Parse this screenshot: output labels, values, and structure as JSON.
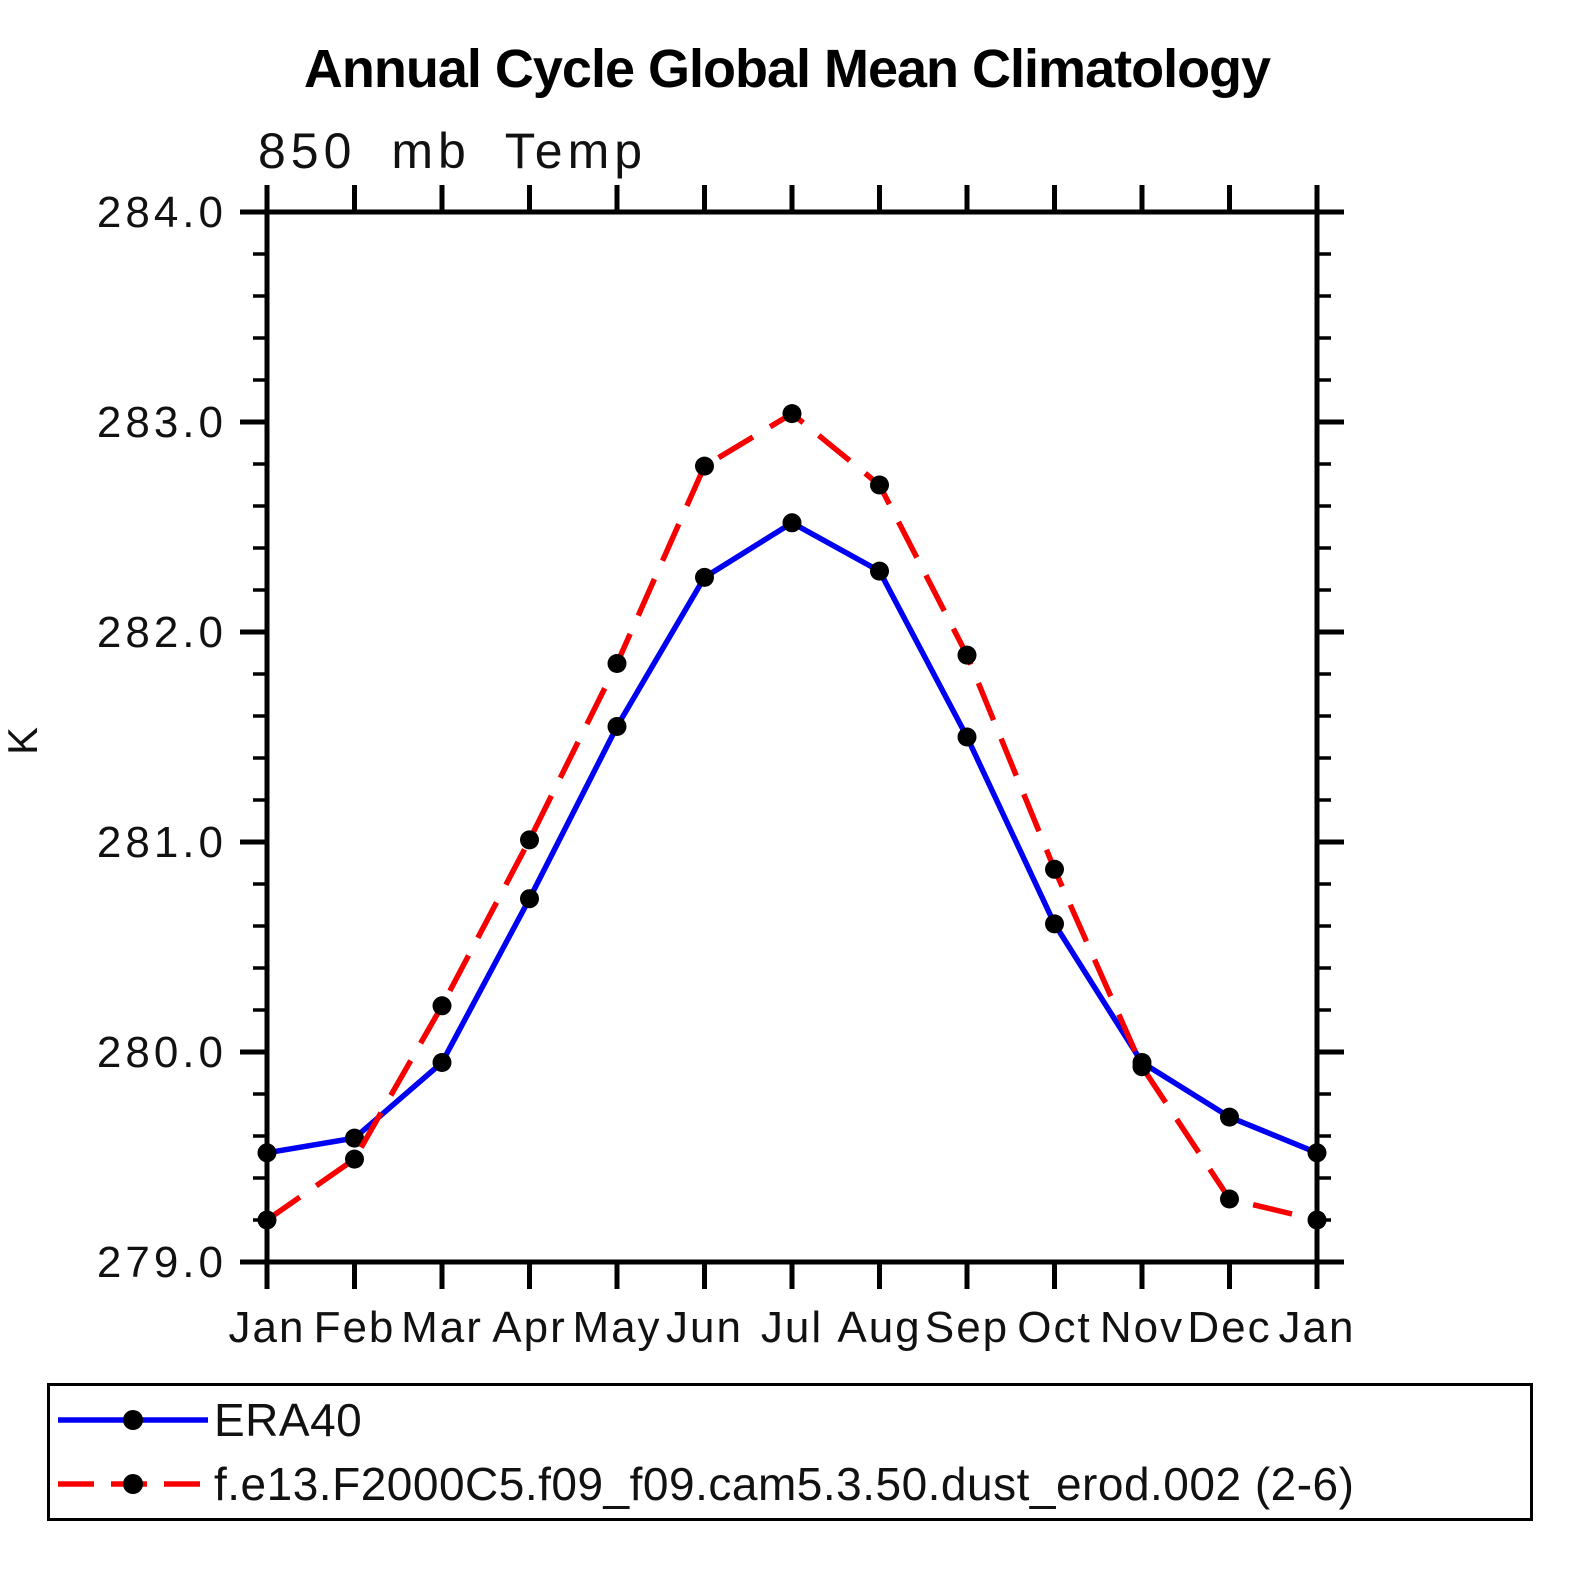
{
  "header": {
    "title": "Annual Cycle Global Mean Climatology",
    "subtitle": "850 mb Temp"
  },
  "chart_data": {
    "type": "line",
    "title": "Annual Cycle Global Mean Climatology",
    "subtitle": "850 mb Temp",
    "xlabel": "",
    "ylabel": "K",
    "ylim": [
      279.0,
      284.0
    ],
    "y_major_ticks": [
      279.0,
      280.0,
      281.0,
      282.0,
      283.0,
      284.0
    ],
    "y_minor_step": 0.2,
    "x_tick_labels": [
      "Jan",
      "Feb",
      "Mar",
      "Apr",
      "May",
      "Jun",
      "Jul",
      "Aug",
      "Sep",
      "Oct",
      "Nov",
      "Dec",
      "Jan"
    ],
    "grid": false,
    "legend_position": "bottom",
    "series": [
      {
        "name": "ERA40",
        "style": "solid",
        "color": "#0000f2",
        "marker": "filled-circle",
        "marker_color": "#000000",
        "values": [
          279.52,
          279.59,
          279.95,
          280.73,
          281.55,
          282.26,
          282.52,
          282.29,
          281.5,
          280.61,
          279.95,
          279.69,
          279.52
        ]
      },
      {
        "name": "f.e13.F2000C5.f09_f09.cam5.3.50.dust_erod.002 (2-6)",
        "style": "dashed",
        "color": "#f70000",
        "marker": "filled-circle",
        "marker_color": "#000000",
        "values": [
          279.2,
          279.49,
          280.22,
          281.01,
          281.85,
          282.79,
          283.04,
          282.7,
          281.89,
          280.87,
          279.93,
          279.3,
          279.2
        ]
      }
    ],
    "colors": {
      "axis": "#000000",
      "background": "#ffffff"
    }
  }
}
